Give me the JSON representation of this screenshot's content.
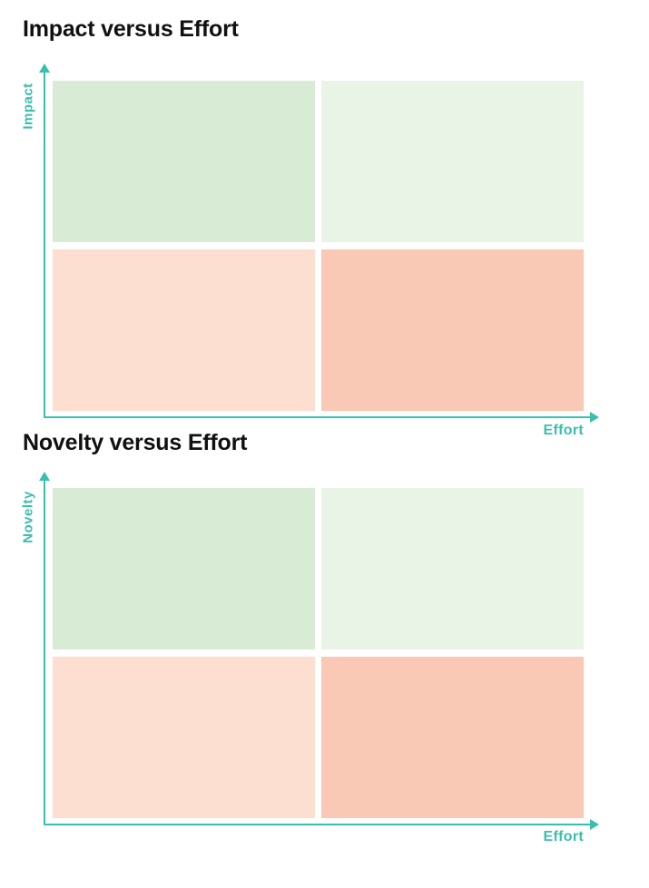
{
  "matrices": [
    {
      "title": "Impact versus Effort",
      "y_axis_label": "Impact",
      "x_axis_label": "Effort",
      "quadrant_colors": {
        "top_left": "#d8ebd5",
        "top_right": "#e9f4e6",
        "bottom_left": "#fcdfd1",
        "bottom_right": "#f9c9b5"
      }
    },
    {
      "title": "Novelty versus Effort",
      "y_axis_label": "Novelty",
      "x_axis_label": "Effort",
      "quadrant_colors": {
        "top_left": "#d8ebd5",
        "top_right": "#e9f4e6",
        "bottom_left": "#fcdfd1",
        "bottom_right": "#f9c9b5"
      }
    }
  ],
  "colors": {
    "axis": "#3bbfad",
    "title": "#111111"
  }
}
